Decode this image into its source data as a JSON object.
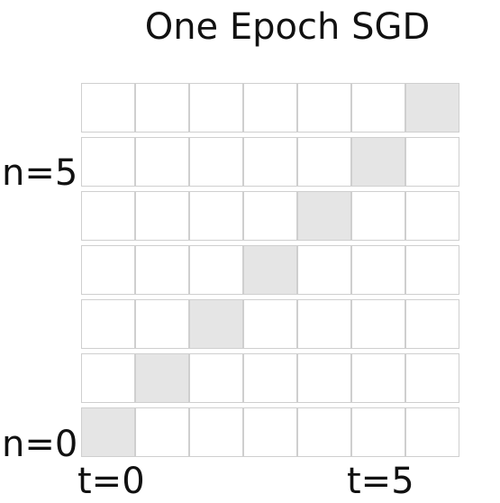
{
  "title": "One Epoch SGD",
  "grid": {
    "rows": 7,
    "columns": 7,
    "highlighted": [
      {
        "row_from_bottom": 0,
        "column": 0
      },
      {
        "row_from_bottom": 1,
        "column": 1
      },
      {
        "row_from_bottom": 2,
        "column": 2
      },
      {
        "row_from_bottom": 3,
        "column": 3
      },
      {
        "row_from_bottom": 4,
        "column": 4
      },
      {
        "row_from_bottom": 5,
        "column": 5
      },
      {
        "row_from_bottom": 6,
        "column": 6
      }
    ],
    "cell_color": "#ffffff",
    "highlight_color": "#e5e5e5",
    "border_color": "#cfcfcf"
  },
  "labels": {
    "n_top": "n=5",
    "n_bottom": "n=0",
    "t_start": "t=0",
    "t_end": "t=5"
  }
}
